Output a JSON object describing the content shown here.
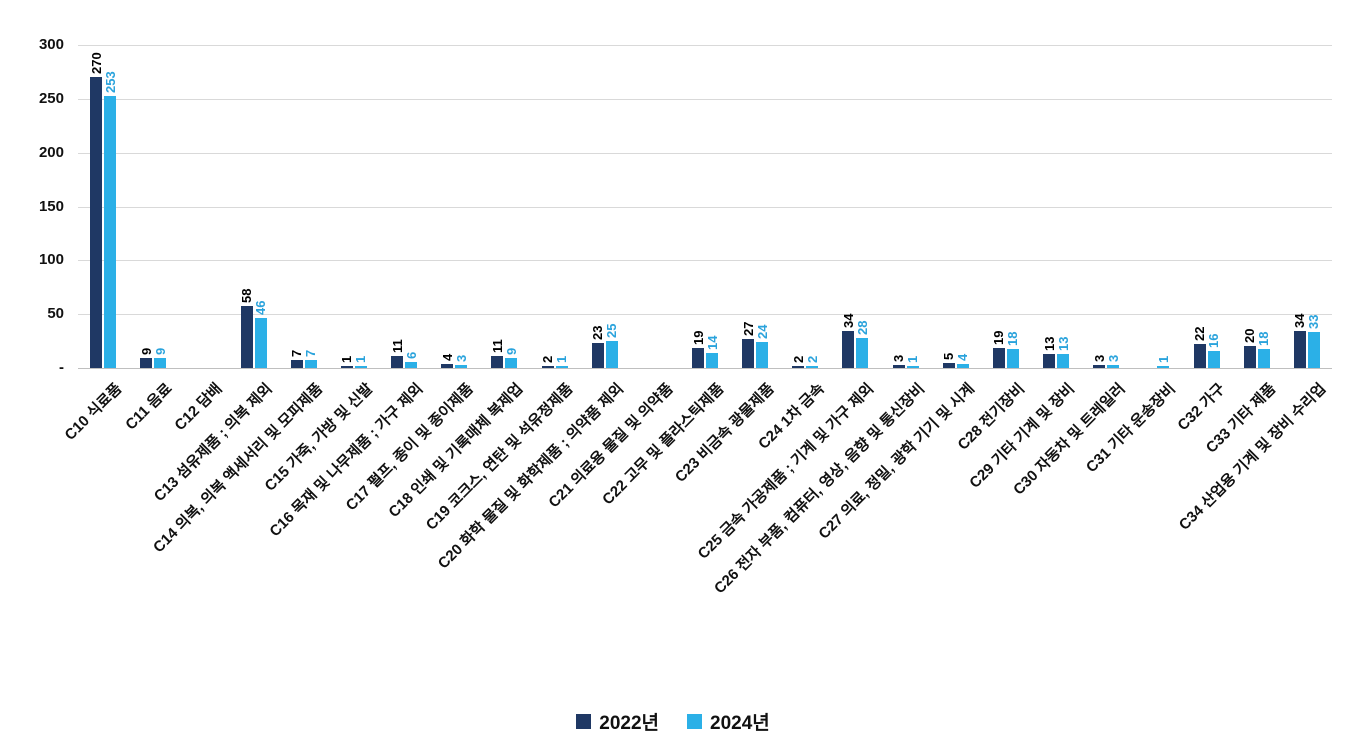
{
  "chart_data": {
    "type": "bar",
    "title": "",
    "categories": [
      "C10 식료품",
      "C11 음료",
      "C12 담배",
      "C13 섬유제품 ; 의복 제외",
      "C14 의복, 의복 액세서리 및 모피제품",
      "C15 가죽, 가방 및 신발",
      "C16 목재 및 나무제품 ; 가구 제외",
      "C17 펄프, 종이 및 종이제품",
      "C18 인쇄 및 기록매체 복제업",
      "C19 코크스, 연탄 및 석유정제품",
      "C20 화학 물질 및 화학제품 ; 의약품 제외",
      "C21 의료용 물질 및 의약품",
      "C22 고무 및 플라스틱제품",
      "C23 비금속 광물제품",
      "C24 1차 금속",
      "C25 금속 가공제품 ; 기계 및 가구 제외",
      "C26 전자 부품, 컴퓨터, 영상, 음향 및 통신장비",
      "C27 의료, 정밀, 광학 기기 및 시계",
      "C28 전기장비",
      "C29 기타 기계 및 장비",
      "C30 자동차 및 트레일러",
      "C31 기타 운송장비",
      "C32 가구",
      "C33 기타 제품",
      "C34 산업용 기계 및 장비 수리업"
    ],
    "series": [
      {
        "name": "2022년",
        "color": "#1f3864",
        "label_color": "#000000",
        "values": [
          270,
          9,
          0,
          58,
          7,
          1,
          11,
          4,
          11,
          2,
          23,
          0,
          19,
          27,
          2,
          34,
          3,
          5,
          19,
          13,
          3,
          0,
          22,
          20,
          34
        ]
      },
      {
        "name": "2024년",
        "color": "#2bb0e7",
        "label_color": "#2aa3dc",
        "values": [
          253,
          9,
          0,
          46,
          7,
          1,
          6,
          3,
          9,
          1,
          25,
          0,
          14,
          24,
          2,
          28,
          1,
          4,
          18,
          13,
          3,
          1,
          16,
          18,
          33
        ]
      }
    ],
    "y_axis": {
      "ticks": [
        {
          "label": "300",
          "value": 300
        },
        {
          "label": "250",
          "value": 250
        },
        {
          "label": "200",
          "value": 200
        },
        {
          "label": "150",
          "value": 150
        },
        {
          "label": "100",
          "value": 100
        },
        {
          "label": "50",
          "value": 50
        },
        {
          "label": "-",
          "value": 0
        }
      ]
    },
    "ylim": [
      0,
      300
    ],
    "grid": true,
    "legend_position": "bottom"
  }
}
